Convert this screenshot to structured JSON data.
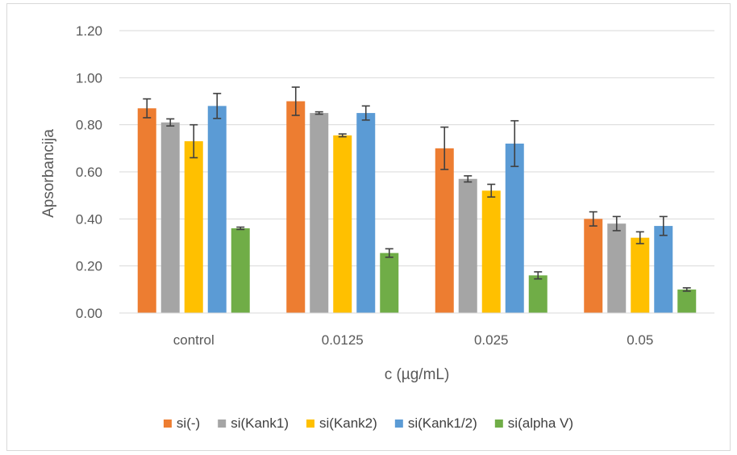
{
  "chart_data": {
    "type": "bar",
    "xlabel": "c (µg/mL)",
    "ylabel": "Apsorbancija",
    "ylim": [
      0,
      1.2
    ],
    "yticks": [
      "0.00",
      "0.20",
      "0.40",
      "0.60",
      "0.80",
      "1.00",
      "1.20"
    ],
    "categories": [
      "control",
      "0.0125",
      "0.025",
      "0.05"
    ],
    "grid": true,
    "legend_position": "bottom",
    "series": [
      {
        "name": "si(-)",
        "color": "#ED7D31",
        "values": [
          0.87,
          0.9,
          0.7,
          0.4
        ],
        "errors": [
          0.04,
          0.06,
          0.09,
          0.03
        ]
      },
      {
        "name": "si(Kank1)",
        "color": "#A5A5A5",
        "values": [
          0.81,
          0.85,
          0.57,
          0.38
        ],
        "errors": [
          0.015,
          0.005,
          0.013,
          0.03
        ]
      },
      {
        "name": "si(Kank2)",
        "color": "#FFC000",
        "values": [
          0.73,
          0.755,
          0.52,
          0.32
        ],
        "errors": [
          0.07,
          0.006,
          0.027,
          0.025
        ]
      },
      {
        "name": "si(Kank1/2)",
        "color": "#5B9BD5",
        "values": [
          0.88,
          0.85,
          0.72,
          0.37
        ],
        "errors": [
          0.053,
          0.03,
          0.097,
          0.04
        ]
      },
      {
        "name": "si(alpha V)",
        "color": "#70AD47",
        "values": [
          0.36,
          0.255,
          0.16,
          0.1
        ],
        "errors": [
          0.005,
          0.018,
          0.015,
          0.007
        ]
      }
    ]
  }
}
